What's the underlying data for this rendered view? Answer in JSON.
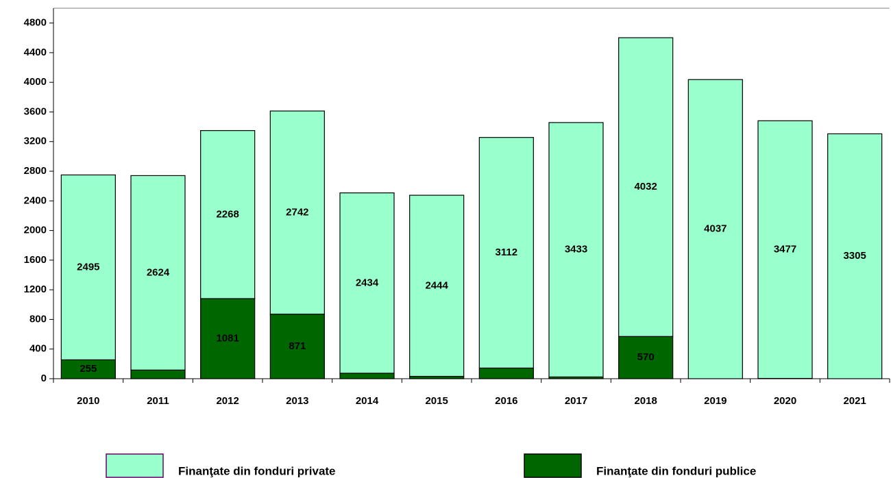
{
  "chart_data": {
    "type": "stacked_bar",
    "categories": [
      "2010",
      "2011",
      "2012",
      "2013",
      "2014",
      "2015",
      "2016",
      "2017",
      "2018",
      "2019",
      "2020",
      "2021"
    ],
    "series": [
      {
        "name": "Finanţate din fonduri publice",
        "color": "#006600",
        "values": [
          255,
          117,
          1081,
          871,
          74,
          32,
          144,
          24,
          570,
          null,
          4,
          null
        ]
      },
      {
        "name": "Finanţate din fonduri private",
        "color": "#99ffcc",
        "values": [
          2495,
          2624,
          2268,
          2742,
          2434,
          2444,
          3112,
          3433,
          4032,
          4037,
          3477,
          3305
        ]
      }
    ],
    "ylim": [
      0,
      5000
    ],
    "yticks": [
      0,
      400,
      800,
      1200,
      1600,
      2000,
      2400,
      2800,
      3200,
      3600,
      4000,
      4400,
      4800
    ]
  }
}
